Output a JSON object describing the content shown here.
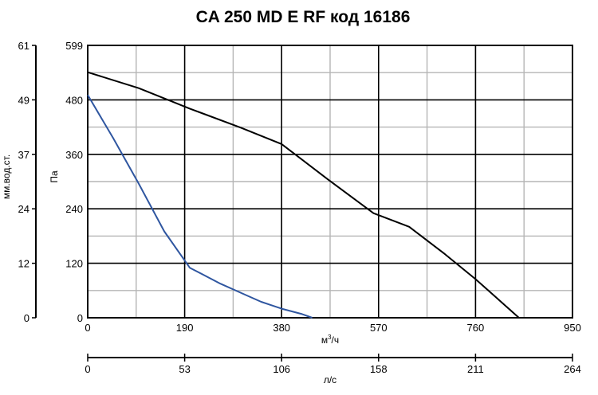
{
  "chart_data": {
    "type": "line",
    "title": "CA 250 MD E RF код 16186",
    "xlabel": "м³/ч",
    "xlabel_base": "м",
    "xlabel_sup": "3",
    "xlabel_tail": "/ч",
    "ylabel": "Па",
    "xlim": [
      0,
      950
    ],
    "ylim": [
      0,
      599
    ],
    "x_ticks": [
      "0",
      "190",
      "380",
      "570",
      "760",
      "950"
    ],
    "y_ticks": [
      "0",
      "120",
      "240",
      "360",
      "480",
      "599"
    ],
    "grid": true,
    "secondary_y": {
      "label": "мм.вод.ст.",
      "ticks": [
        "0",
        "12",
        "24",
        "37",
        "49",
        "61"
      ]
    },
    "secondary_x": {
      "label": "л/с",
      "ticks": [
        "0",
        "53",
        "106",
        "158",
        "211",
        "264"
      ]
    },
    "series": [
      {
        "color": "#000000",
        "x": [
          0,
          100,
          200,
          300,
          380,
          470,
          560,
          630,
          700,
          760,
          800,
          845
        ],
        "y": [
          540,
          505,
          460,
          418,
          382,
          305,
          230,
          200,
          140,
          85,
          45,
          0
        ]
      },
      {
        "color": "#2f56a0",
        "x": [
          0,
          50,
          100,
          150,
          200,
          260,
          310,
          340,
          380,
          420,
          440
        ],
        "y": [
          490,
          395,
          295,
          190,
          110,
          75,
          50,
          35,
          20,
          8,
          0
        ]
      }
    ]
  }
}
